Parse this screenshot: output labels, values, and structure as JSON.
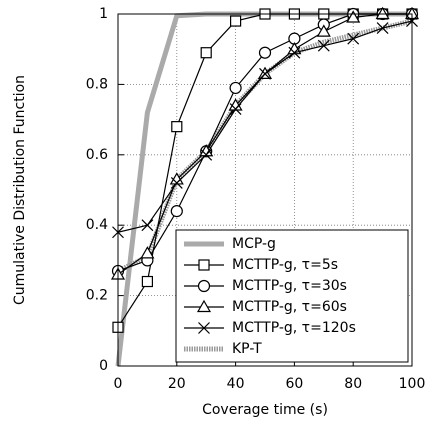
{
  "chart_data": {
    "type": "line",
    "xlabel": "Coverage time (s)",
    "ylabel": "Cumulative Distribution Function",
    "x": [
      0,
      10,
      20,
      30,
      40,
      50,
      60,
      70,
      80,
      90,
      100
    ],
    "xlim": [
      0,
      100
    ],
    "xticks": [
      0,
      20,
      40,
      60,
      80,
      100
    ],
    "ylim": [
      0,
      1
    ],
    "yticks": [
      0,
      0.2,
      0.4,
      0.6,
      0.8,
      1
    ],
    "grid": true,
    "legend": "lower right",
    "series": [
      {
        "name": "MCP-g",
        "color": "#aaaaaa",
        "style": "thick",
        "values": [
          0,
          0.72,
          0.995,
          1,
          1,
          1,
          1,
          1,
          1,
          1,
          1
        ]
      },
      {
        "name": "MCTTP-g, τ=5s",
        "color": "#000000",
        "marker": "square",
        "values": [
          0.11,
          0.24,
          0.68,
          0.89,
          0.98,
          1,
          1,
          1,
          1,
          1,
          1
        ]
      },
      {
        "name": "MCTTP-g, τ=30s",
        "color": "#000000",
        "marker": "circle",
        "values": [
          0.27,
          0.3,
          0.44,
          0.61,
          0.79,
          0.89,
          0.93,
          0.97,
          1,
          1,
          1
        ]
      },
      {
        "name": "MCTTP-g, τ=60s",
        "color": "#000000",
        "marker": "triangle",
        "values": [
          0.26,
          0.32,
          0.53,
          0.61,
          0.74,
          0.83,
          0.9,
          0.95,
          0.99,
          1,
          1
        ]
      },
      {
        "name": "MCTTP-g, τ=120s",
        "color": "#000000",
        "marker": "cross",
        "values": [
          0.38,
          0.4,
          0.52,
          0.6,
          0.73,
          0.83,
          0.89,
          0.91,
          0.93,
          0.96,
          0.98
        ]
      },
      {
        "name": "KP-T",
        "color": "#999999",
        "style": "striped",
        "values": [
          0.27,
          0.31,
          0.53,
          0.61,
          0.74,
          0.83,
          0.89,
          0.92,
          0.94,
          0.96,
          0.98
        ]
      }
    ]
  }
}
